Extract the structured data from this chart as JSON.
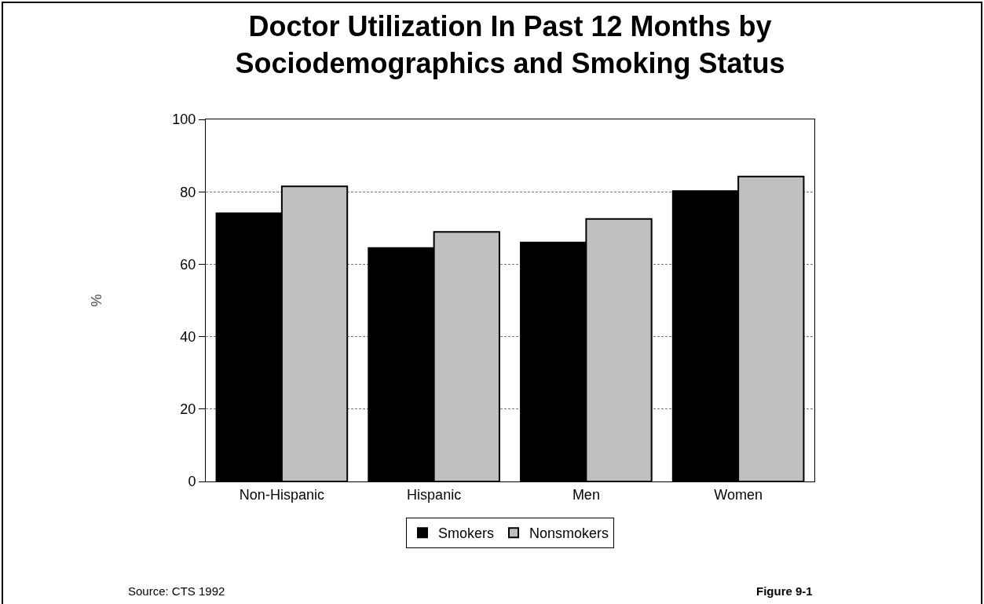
{
  "chart_data": {
    "type": "bar",
    "title": "Doctor Utilization In Past 12 Months by\nSociodemographics and Smoking Status",
    "ylabel": "%",
    "categories": [
      "Non-Hispanic",
      "Hispanic",
      "Men",
      "Women"
    ],
    "series": [
      {
        "name": "Smokers",
        "color": "#000000",
        "values": [
          74.1,
          64.5,
          66.0,
          80.2
        ]
      },
      {
        "name": "Nonsmokers",
        "color": "#c0c0c0",
        "values": [
          81.5,
          68.9,
          72.5,
          84.2
        ]
      }
    ],
    "ylim": [
      0,
      100
    ],
    "yticks": [
      0,
      20,
      40,
      60,
      80,
      100
    ],
    "grid": "y",
    "legend": "bottom",
    "annotations": [
      "Source: CTS 1992",
      "Figure 9-1"
    ]
  }
}
